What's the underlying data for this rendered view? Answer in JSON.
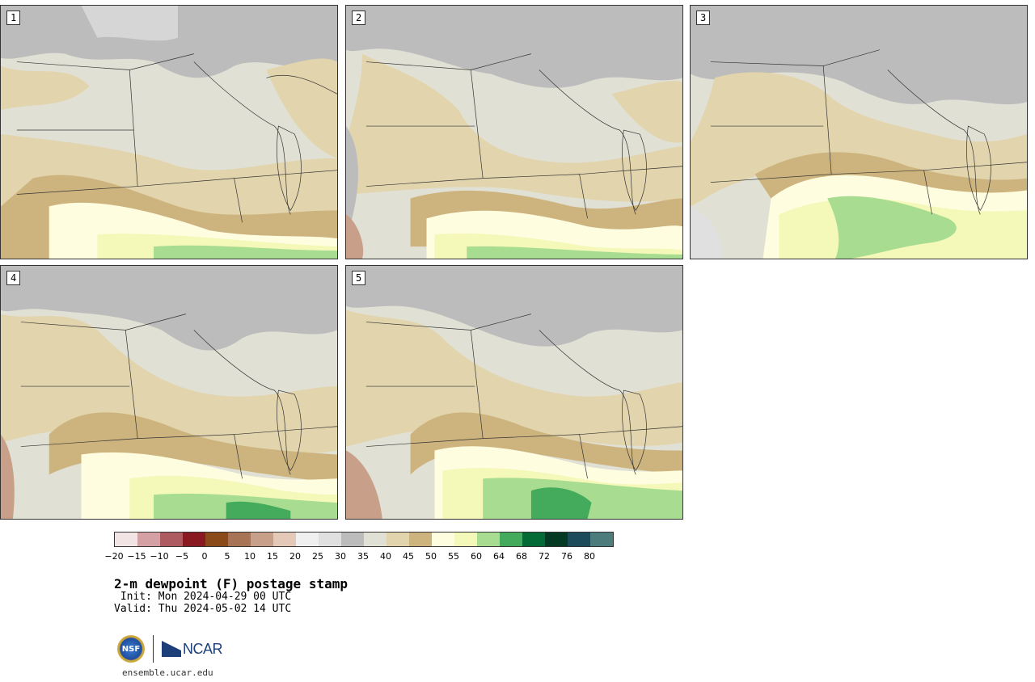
{
  "panels": [
    {
      "label": "1"
    },
    {
      "label": "2"
    },
    {
      "label": "3"
    },
    {
      "label": "4"
    },
    {
      "label": "5"
    }
  ],
  "colorbar": {
    "colors": [
      "#f2e4e4",
      "#d4a0a4",
      "#ad5a60",
      "#8a1a22",
      "#8a4a1a",
      "#a87456",
      "#c8a08a",
      "#e4c8b8",
      "#f0f0f0",
      "#e0e0e0",
      "#bcbcbc",
      "#e0e0d4",
      "#e2d4ac",
      "#cdb47e",
      "#fffde0",
      "#f4f8b8",
      "#a8dc90",
      "#44aa5c",
      "#046a36",
      "#043a24",
      "#1c4c5c",
      "#4c7c7c"
    ],
    "tick_labels": [
      "−20",
      "−15",
      "−10",
      "−5",
      "0",
      "5",
      "10",
      "15",
      "20",
      "25",
      "30",
      "35",
      "40",
      "45",
      "50",
      "55",
      "60",
      "64",
      "68",
      "72",
      "76",
      "80"
    ]
  },
  "title": "2-m dewpoint (F) postage stamp",
  "init": " Init: Mon 2024-04-29 00 UTC",
  "valid": "Valid: Thu 2024-05-02 14 UTC",
  "logos": {
    "nsf": "NSF",
    "ncar": "NCAR"
  },
  "url": "ensemble.ucar.edu"
}
